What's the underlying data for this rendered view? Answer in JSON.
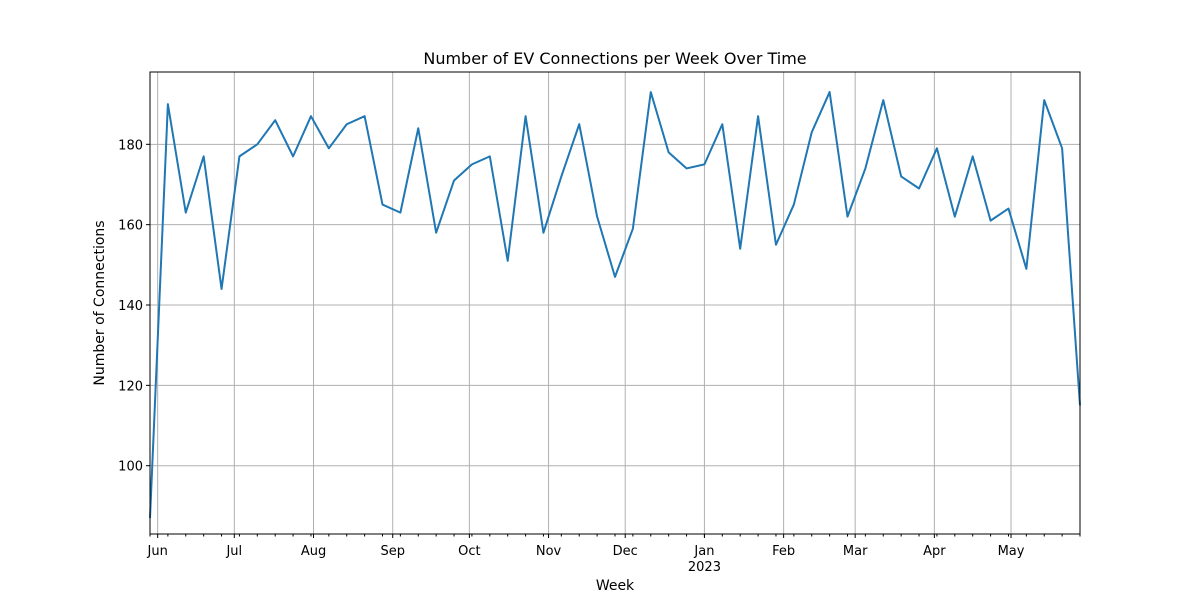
{
  "chart_data": {
    "type": "line",
    "title": "Number of EV Connections per Week Over Time",
    "xlabel": "Week",
    "ylabel": "Number of Connections",
    "grid": true,
    "color": "#1f77b4",
    "x_start": "2022-05-29",
    "x_end": "2023-05-28",
    "ylim": [
      83,
      198
    ],
    "y_ticks": [
      100,
      120,
      140,
      160,
      180
    ],
    "x_major_ticks": [
      {
        "date": "2022-06-01",
        "label": "Jun"
      },
      {
        "date": "2022-07-01",
        "label": "Jul"
      },
      {
        "date": "2022-08-01",
        "label": "Aug"
      },
      {
        "date": "2022-09-01",
        "label": "Sep"
      },
      {
        "date": "2022-10-01",
        "label": "Oct"
      },
      {
        "date": "2022-11-01",
        "label": "Nov"
      },
      {
        "date": "2022-12-01",
        "label": "Dec"
      },
      {
        "date": "2023-01-01",
        "label": "Jan",
        "sublabel": "2023"
      },
      {
        "date": "2023-02-01",
        "label": "Feb"
      },
      {
        "date": "2023-03-01",
        "label": "Mar"
      },
      {
        "date": "2023-04-01",
        "label": "Apr"
      },
      {
        "date": "2023-05-01",
        "label": "May"
      }
    ],
    "series": [
      {
        "x": [
          "2022-05-29",
          "2022-06-05",
          "2022-06-12",
          "2022-06-19",
          "2022-06-26",
          "2022-07-03",
          "2022-07-10",
          "2022-07-17",
          "2022-07-24",
          "2022-07-31",
          "2022-08-07",
          "2022-08-14",
          "2022-08-21",
          "2022-08-28",
          "2022-09-04",
          "2022-09-11",
          "2022-09-18",
          "2022-09-25",
          "2022-10-02",
          "2022-10-09",
          "2022-10-16",
          "2022-10-23",
          "2022-10-30",
          "2022-11-06",
          "2022-11-13",
          "2022-11-20",
          "2022-11-27",
          "2022-12-04",
          "2022-12-11",
          "2022-12-18",
          "2022-12-25",
          "2023-01-01",
          "2023-01-08",
          "2023-01-15",
          "2023-01-22",
          "2023-01-29",
          "2023-02-05",
          "2023-02-12",
          "2023-02-19",
          "2023-02-26",
          "2023-03-05",
          "2023-03-12",
          "2023-03-19",
          "2023-03-26",
          "2023-04-02",
          "2023-04-09",
          "2023-04-16",
          "2023-04-23",
          "2023-04-30",
          "2023-05-07",
          "2023-05-14",
          "2023-05-21",
          "2023-05-28"
        ],
        "values": [
          87,
          190,
          163,
          177,
          144,
          177,
          180,
          186,
          177,
          187,
          179,
          185,
          187,
          165,
          163,
          184,
          158,
          171,
          175,
          177,
          151,
          187,
          158,
          172,
          185,
          162,
          147,
          159,
          193,
          178,
          174,
          175,
          185,
          154,
          187,
          155,
          165,
          183,
          193,
          162,
          174,
          191,
          172,
          169,
          179,
          162,
          177,
          161,
          164,
          149,
          191,
          179,
          115
        ]
      }
    ]
  }
}
